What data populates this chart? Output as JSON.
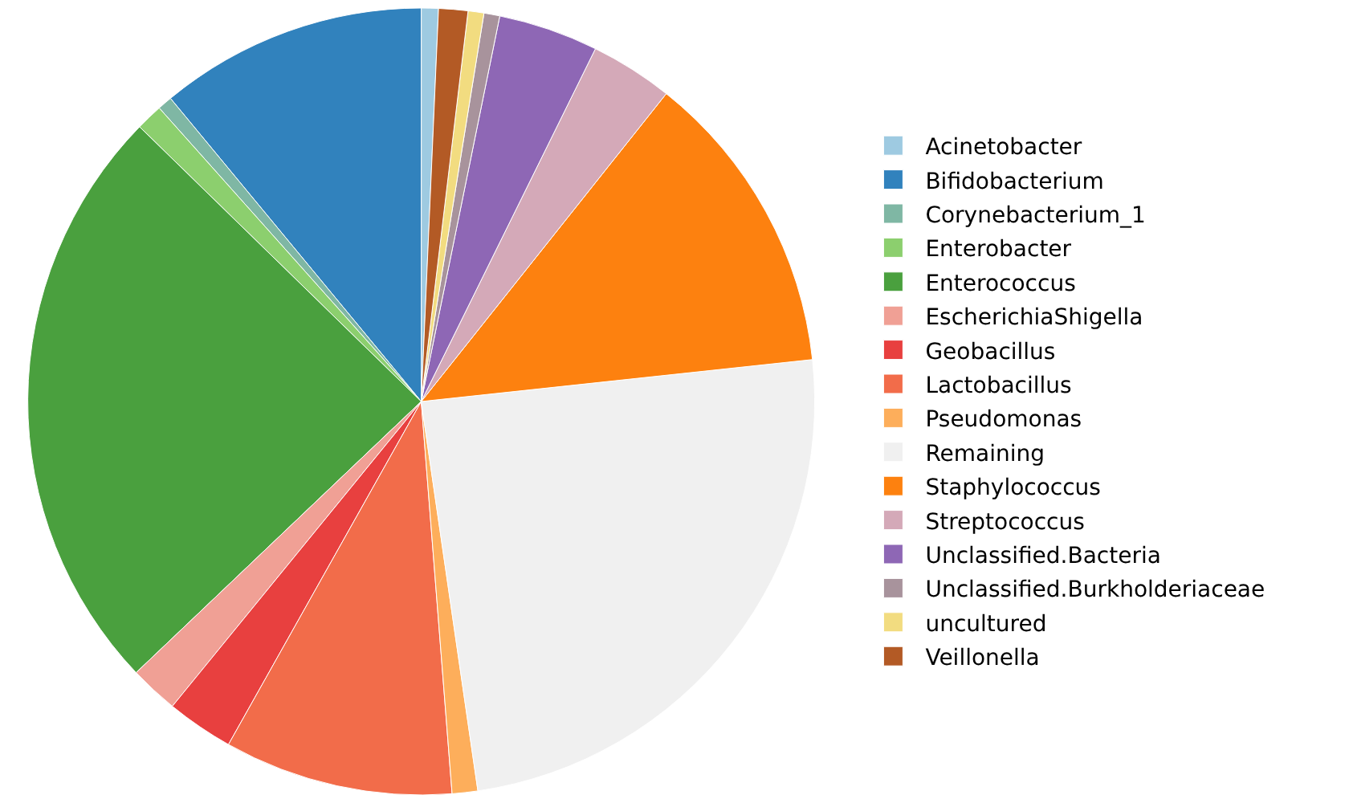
{
  "chart_data": {
    "type": "pie",
    "legend": "right",
    "categories": [
      "Acinetobacter",
      "Bifidobacterium",
      "Corynebacterium_1",
      "Enterobacter",
      "Enterococcus",
      "EscherichiaShigella",
      "Geobacillus",
      "Lactobacillus",
      "Pseudomonas",
      "Remaining",
      "Staphylococcus",
      "Streptococcus",
      "Unclassified.Bacteria",
      "Unclassified.Burkholderiaceae",
      "uncultured",
      "Veillonella"
    ],
    "values": [
      0.7,
      11,
      0.6,
      1.1,
      24.4,
      2.0,
      2.75,
      9.4,
      1.05,
      24.4,
      12.6,
      3.4,
      4.1,
      0.65,
      0.65,
      1.2
    ],
    "colors": [
      "#9ecae1",
      "#3182bd",
      "#7fb7a4",
      "#8ccf6e",
      "#4aa03e",
      "#f0a095",
      "#e8403f",
      "#f26c4a",
      "#fdae5b",
      "#f0f0f0",
      "#fd810f",
      "#d4a9b8",
      "#8e67b5",
      "#a8939c",
      "#f2dc80",
      "#b35a25"
    ]
  }
}
